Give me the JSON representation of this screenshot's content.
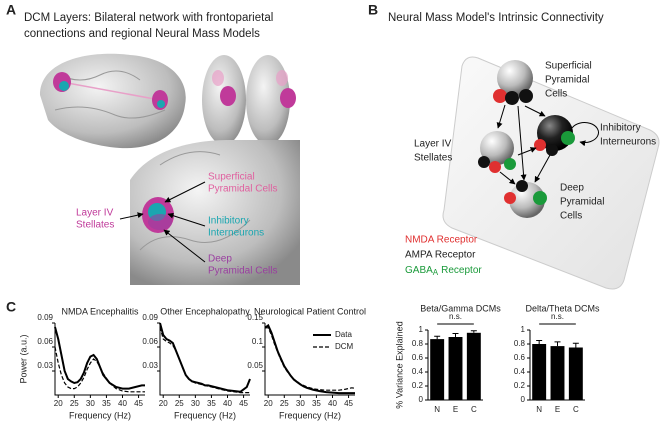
{
  "panel_a": {
    "letter": "A",
    "title_lines": [
      "DCM Layers: Bilateral network with frontoparietal",
      "connections and regional Neural Mass Models"
    ],
    "labels": {
      "superficial": [
        "Superficial",
        "Pyramidal Cells"
      ],
      "stellates": [
        "Layer IV",
        "Stellates"
      ],
      "inhibitory": [
        "Inhibitory",
        "Interneurons"
      ],
      "deep": [
        "Deep",
        "Pyramidal Cells"
      ]
    }
  },
  "panel_b": {
    "letter": "B",
    "title": "Neural Mass Model's Intrinsic Connectivity",
    "labels": {
      "superficial": [
        "Superficial",
        "Pyramidal",
        "Cells"
      ],
      "inhibitory": [
        "Inhibitory",
        "Interneurons"
      ],
      "stellates": [
        "Layer IV",
        "Stellates"
      ],
      "deep": [
        "Deep",
        "Pyramidal",
        "Cells"
      ]
    },
    "receptors": [
      {
        "text": "NMDA Receptor"
      },
      {
        "text": "AMPA Receptor"
      },
      {
        "text": "GABA",
        "subscript": "A",
        "suffix": "Receptor"
      }
    ]
  },
  "panel_c": {
    "letter": "C"
  },
  "chart_data": [
    {
      "type": "line",
      "title": "NMDA Encephalitis",
      "xlabel": "Frequency (Hz)",
      "ylabel": "Power (a.u.)",
      "x": [
        19,
        20,
        21,
        22,
        23,
        24,
        25,
        26,
        27,
        28,
        29,
        30,
        31,
        32,
        33,
        34,
        36,
        38,
        40,
        42,
        44,
        46,
        47
      ],
      "series": [
        {
          "color": "#000",
          "dash": false,
          "values": [
            0.085,
            0.07,
            0.05,
            0.03,
            0.02,
            0.017,
            0.015,
            0.016,
            0.02,
            0.028,
            0.04,
            0.048,
            0.05,
            0.045,
            0.035,
            0.025,
            0.015,
            0.01,
            0.008,
            0.008,
            0.01,
            0.012,
            0.012
          ]
        },
        {
          "color": "#000",
          "dash": true,
          "values": [
            0.06,
            0.04,
            0.025,
            0.015,
            0.01,
            0.008,
            0.008,
            0.01,
            0.015,
            0.022,
            0.032,
            0.04,
            0.045,
            0.042,
            0.035,
            0.027,
            0.015,
            0.008,
            0.005,
            0.004,
            0.004,
            0.004,
            0.004
          ]
        }
      ],
      "xlim": [
        19,
        47
      ],
      "xticks": [
        20,
        25,
        30,
        35,
        40,
        45
      ],
      "ylim": [
        0,
        0.09
      ],
      "yticks": [
        0.03,
        0.06,
        0.09
      ]
    },
    {
      "type": "line",
      "title": "Other Encephalopathy",
      "xlabel": "Frequency (Hz)",
      "x": [
        19,
        20,
        21,
        22,
        23,
        24,
        25,
        26,
        27,
        28,
        29,
        30,
        31,
        32,
        33,
        34,
        36,
        38,
        40,
        42,
        44,
        46,
        47
      ],
      "series": [
        {
          "color": "#000",
          "dash": false,
          "values": [
            0.09,
            0.075,
            0.07,
            0.068,
            0.065,
            0.055,
            0.045,
            0.035,
            0.025,
            0.02,
            0.017,
            0.016,
            0.015,
            0.014,
            0.012,
            0.012,
            0.01,
            0.008,
            0.006,
            0.005,
            0.004,
            0.01,
            0.02
          ]
        },
        {
          "color": "#000",
          "dash": true,
          "values": [
            0.085,
            0.07,
            0.067,
            0.065,
            0.062,
            0.055,
            0.045,
            0.034,
            0.025,
            0.02,
            0.017,
            0.015,
            0.014,
            0.013,
            0.012,
            0.011,
            0.009,
            0.007,
            0.005,
            0.004,
            0.003,
            0.003,
            0.003
          ]
        }
      ],
      "xlim": [
        19,
        47
      ],
      "xticks": [
        20,
        25,
        30,
        35,
        40,
        45
      ],
      "ylim": [
        0,
        0.09
      ],
      "yticks": [
        0.03,
        0.06,
        0.09
      ]
    },
    {
      "type": "line",
      "title": "Neurological Patient Control",
      "xlabel": "Frequency (Hz)",
      "legend": true,
      "x": [
        19,
        20,
        21,
        22,
        23,
        24,
        25,
        26,
        27,
        28,
        29,
        30,
        31,
        32,
        33,
        34,
        36,
        38,
        40,
        42,
        44,
        46,
        47
      ],
      "series": [
        {
          "name": "Data",
          "color": "#000",
          "dash": false,
          "values": [
            0.14,
            0.145,
            0.13,
            0.11,
            0.09,
            0.075,
            0.06,
            0.05,
            0.04,
            0.032,
            0.027,
            0.022,
            0.018,
            0.015,
            0.013,
            0.011,
            0.008,
            0.006,
            0.005,
            0.004,
            0.004,
            0.004,
            0.004
          ]
        },
        {
          "name": "DCM",
          "color": "#000",
          "dash": true,
          "values": [
            0.14,
            0.14,
            0.125,
            0.105,
            0.088,
            0.072,
            0.058,
            0.048,
            0.04,
            0.033,
            0.028,
            0.023,
            0.02,
            0.017,
            0.015,
            0.013,
            0.011,
            0.01,
            0.01,
            0.01,
            0.012,
            0.015,
            0.014
          ]
        }
      ],
      "xlim": [
        19,
        47
      ],
      "xticks": [
        20,
        25,
        30,
        35,
        40,
        45
      ],
      "ylim": [
        0,
        0.15
      ],
      "yticks": [
        0.05,
        0.1,
        0.15
      ]
    },
    {
      "type": "bar",
      "title": "Beta/Gamma DCMs",
      "ylabel": "% Variance Explained",
      "annotation": "n.s.",
      "color": "#000",
      "categories": [
        "N",
        "E",
        "C"
      ],
      "values": [
        0.87,
        0.9,
        0.96
      ],
      "errors": [
        0.04,
        0.05,
        0.03
      ],
      "ylim": [
        0,
        1
      ],
      "yticks": [
        0,
        0.2,
        0.4,
        0.6,
        0.8,
        1
      ]
    },
    {
      "type": "bar",
      "title": "Delta/Theta DCMs",
      "annotation": "n.s.",
      "color": "#000",
      "categories": [
        "N",
        "E",
        "C"
      ],
      "values": [
        0.8,
        0.77,
        0.75
      ],
      "errors": [
        0.05,
        0.06,
        0.06
      ],
      "ylim": [
        0,
        1
      ],
      "yticks": [
        0,
        0.2,
        0.4,
        0.6,
        0.8,
        1
      ]
    }
  ]
}
